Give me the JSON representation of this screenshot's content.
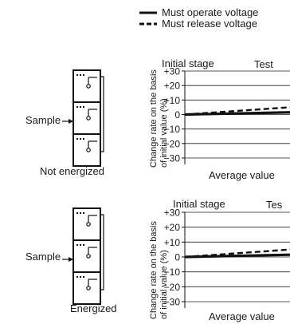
{
  "legend": {
    "items": [
      {
        "label": "Must operate voltage",
        "style": "solid"
      },
      {
        "label": "Must release voltage",
        "style": "dashed"
      }
    ]
  },
  "panels": [
    {
      "sample_label": "Sample",
      "condition_label": "Not energized",
      "ylabel_line1": "Change rate on the basis",
      "ylabel_line2": "of initial value (%)",
      "top_left_label": "Initial stage",
      "top_right_label": "Test",
      "bottom_label": "Average value",
      "relays": 3
    },
    {
      "sample_label": "Sample",
      "condition_label": "Energized",
      "ylabel_line1": "Change rate on the basis",
      "ylabel_line2": "of initial value (%)",
      "top_left_label": "Initial stage",
      "top_right_label": "Tes",
      "bottom_label": "Average value",
      "relays": 3
    }
  ],
  "chart_data": [
    {
      "type": "line",
      "title": "",
      "ylim": [
        -30,
        30
      ],
      "yticks": [
        "+30",
        "+20",
        "+10",
        "0",
        "−10",
        "−20",
        "−30"
      ],
      "ytick_values": [
        30,
        20,
        10,
        0,
        -10,
        -20,
        -30
      ],
      "x": [
        0,
        1
      ],
      "series": [
        {
          "name": "Must operate voltage",
          "style": "solid",
          "values": [
            0,
            1.5
          ]
        },
        {
          "name": "Must release voltage",
          "style": "dashed",
          "values": [
            0,
            5
          ]
        }
      ]
    },
    {
      "type": "line",
      "title": "",
      "ylim": [
        -30,
        30
      ],
      "yticks": [
        "+30",
        "+20",
        "+10",
        "0",
        "−10",
        "−20",
        "−30"
      ],
      "ytick_values": [
        30,
        20,
        10,
        0,
        -10,
        -20,
        -30
      ],
      "x": [
        0,
        1
      ],
      "series": [
        {
          "name": "Must operate voltage",
          "style": "solid",
          "values": [
            0,
            1.5
          ]
        },
        {
          "name": "Must release voltage",
          "style": "dashed",
          "values": [
            0,
            5
          ]
        }
      ]
    }
  ]
}
